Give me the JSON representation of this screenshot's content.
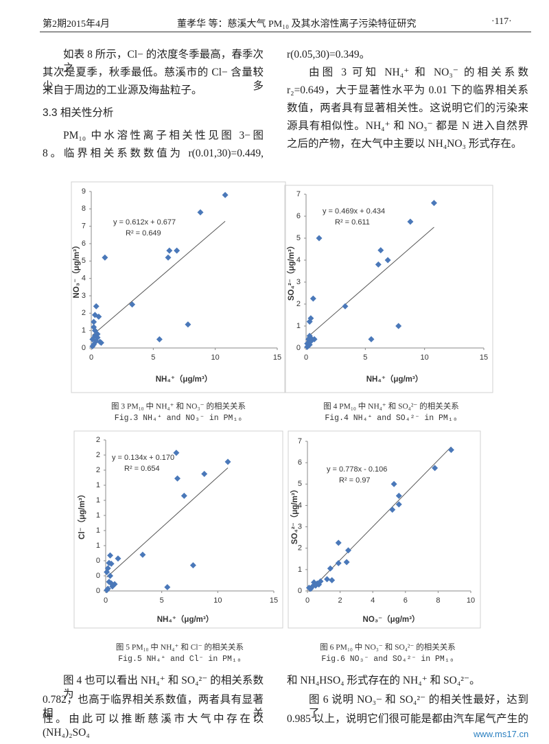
{
  "header": {
    "issue": "第2期2015年4月",
    "title": "董孝华 等：慈溪大气 PM₁₀ 及其水溶性离子污染特征研究",
    "page": "·117·"
  },
  "top_left": [
    "如表 8 所示，Cl− 的浓度冬季最高，春季次之，",
    "其次是夏季，秋季最低。慈溪市的 Cl− 含量较少，多",
    "来自于周边的工业源及海盐粒子。"
  ],
  "section": "3.3  相关性分析",
  "top_left_2": [
    "PM₁₀ 中水溶性离子相关性见图 3−图",
    "8。临界相关系数数值为 r(0.01,30)=0.449,"
  ],
  "top_right": [
    "r(0.05,30)=0.349。",
    "由图 3 可知 NH₄⁺ 和 NO₃⁻ 的相关系数",
    "r₂=0.649，大于显著性水平为 0.01 下的临界相关系",
    "数值，两者具有显著相关性。这说明它们的污染来",
    "源具有相似性。NH₄⁺ 和 NO₃⁻ 都是 N 进入自然界",
    "之后的产物，在大气中主要以 NH₄NO₃ 形式存在。"
  ],
  "chart_data": [
    {
      "type": "scatter",
      "color": "#4a78b9",
      "xlabel": "NH₄⁺（μg/m³）",
      "ylabel": "NO₃⁻（μg/m³）",
      "annotations": [
        "y = 0.612x + 0.677",
        "R² = 0.649"
      ],
      "caption_cn": "图 3  PM₁₀ 中 NH₄⁺ 和 NO₃⁻ 的相关关系",
      "caption_en": "Fig.3  NH₄⁺ and NO₃⁻ in PM₁₀",
      "xlim": [
        0,
        15
      ],
      "xticks": [
        0,
        5,
        10,
        15
      ],
      "ylim": [
        0,
        9
      ],
      "yticks": [
        0,
        1,
        2,
        3,
        4,
        5,
        6,
        7,
        8,
        9
      ],
      "x": [
        10.8,
        8.8,
        6.3,
        6.9,
        6.2,
        1.1,
        3.3,
        0.4,
        0.3,
        0.6,
        0.2,
        0.2,
        0.3,
        7.8,
        5.5,
        0.3,
        0.5,
        0.1,
        0.4,
        0.7,
        0.2,
        0.1,
        0.5,
        0.8
      ],
      "values": [
        8.8,
        7.8,
        5.6,
        5.6,
        5.2,
        5.2,
        2.5,
        2.4,
        1.9,
        1.8,
        1.5,
        1.2,
        1.0,
        1.35,
        0.5,
        0.7,
        0.6,
        0.5,
        0.4,
        0.35,
        0.2,
        0.1,
        0.8,
        0.3
      ]
    },
    {
      "type": "scatter",
      "color": "#4a78b9",
      "xlabel": "NH₄⁺（μg/m³）",
      "ylabel": "SO₄²⁻（μg/m³）",
      "annotations": [
        "y = 0.469x + 0.434",
        "R² = 0.611"
      ],
      "caption_cn": "图 4  PM₁₀ 中 NH₄⁺ 和 SO₄²⁻ 的相关关系",
      "caption_en": "Fig.4  NH₄⁺ and SO₄²⁻ in PM₁₀",
      "xlim": [
        0,
        15
      ],
      "xticks": [
        0,
        5,
        10,
        15
      ],
      "ylim": [
        0,
        7
      ],
      "yticks": [
        0,
        1,
        2,
        3,
        4,
        5,
        6,
        7
      ],
      "x": [
        10.8,
        8.8,
        1.1,
        6.3,
        6.9,
        6.1,
        0.6,
        3.3,
        0.4,
        0.3,
        7.8,
        5.5,
        0.3,
        0.2,
        0.5,
        0.7,
        0.1,
        0.3,
        0.4,
        0.2,
        0.1
      ],
      "values": [
        6.6,
        5.75,
        5.0,
        4.45,
        4.0,
        3.8,
        2.25,
        1.9,
        1.35,
        1.2,
        1.0,
        0.4,
        0.55,
        0.4,
        0.4,
        0.4,
        0.2,
        0.15,
        0.3,
        0.1,
        0.05
      ]
    },
    {
      "type": "scatter",
      "color": "#4a78b9",
      "xlabel": "NH₄⁺（μg/m³）",
      "ylabel": "Cl⁻（μg/m³）",
      "annotations": [
        "y = 0.134x + 0.170",
        "R² = 0.654"
      ],
      "caption_cn": "图 5  PM₁₀ 中 NH₄⁺ 和 Cl⁻ 的相关关系",
      "caption_en": "Fig.5  NH₄⁺ and Cl⁻ in PM₁₀",
      "xlim": [
        0,
        15
      ],
      "xticks": [
        0,
        5,
        10,
        15
      ],
      "ylim": [
        0,
        2
      ],
      "yticks": [
        0,
        {
          "value": 0.2,
          "label": "0"
        },
        {
          "value": 0.4,
          "label": "0"
        },
        {
          "value": 0.6,
          "label": "1"
        },
        {
          "value": 0.8,
          "label": "1"
        },
        1,
        {
          "value": 1.2,
          "label": "1"
        },
        {
          "value": 1.4,
          "label": "1"
        },
        {
          "value": 1.6,
          "label": "2"
        },
        {
          "value": 1.8,
          "label": "2"
        },
        2
      ],
      "x": [
        10.9,
        6.3,
        8.8,
        6.4,
        7.0,
        3.3,
        1.1,
        0.4,
        7.8,
        5.5,
        0.3,
        0.5,
        0.2,
        0.4,
        0.1,
        0.3,
        0.8,
        0.6,
        0.2,
        0.1,
        0.5
      ],
      "values": [
        1.71,
        1.83,
        1.55,
        1.49,
        1.26,
        0.48,
        0.43,
        0.47,
        0.34,
        0.05,
        0.37,
        0.36,
        0.3,
        0.2,
        0.25,
        0.12,
        0.09,
        0.06,
        0.03,
        0.01,
        0.1
      ]
    },
    {
      "type": "scatter",
      "color": "#4a78b9",
      "xlabel": "NO₃⁻（μg/m³）",
      "ylabel": "SO₄²⁻（μg/m³）",
      "annotations": [
        "y = 0.778x - 0.106",
        "R² = 0.97"
      ],
      "caption_cn": "图 6  PM₁₀ 中 NO₃⁻ 和 SO₄²⁻ 的相关关系",
      "caption_en": "Fig.6  NO₃⁻ and SO₄²⁻ in PM₁₀",
      "xlim": [
        0,
        10
      ],
      "xticks": [
        0,
        2,
        4,
        6,
        8,
        10
      ],
      "ylim": [
        0,
        7
      ],
      "yticks": [
        0,
        1,
        2,
        3,
        4,
        5,
        6,
        7
      ],
      "x": [
        8.8,
        7.8,
        5.3,
        5.6,
        5.6,
        5.2,
        1.9,
        2.5,
        1.9,
        1.4,
        2.4,
        1.2,
        1.5,
        0.8,
        0.4,
        0.6,
        0.3,
        0.5,
        0.2,
        0.1,
        0.7
      ],
      "values": [
        6.6,
        5.75,
        5.0,
        4.45,
        4.05,
        3.8,
        2.25,
        1.9,
        1.3,
        1.05,
        1.35,
        0.55,
        0.5,
        0.45,
        0.4,
        0.35,
        0.2,
        0.25,
        0.1,
        0.15,
        0.3
      ]
    }
  ],
  "bottom_left": [
    "图 4 也可以看出 NH₄⁺ 和 SO₄²⁻ 的相关系数为",
    "0.782，也高于临界相关系数值，两者具有显著相关",
    "性。由此可以推断慈溪市大气中存在以 (NH₄)₂SO₄"
  ],
  "bottom_right": [
    "和 NH₄HSO₄ 形式存在的 NH₄⁺ 和 SO₄²⁻。",
    "图 6 说明 NO₃− 和 SO₄²⁻ 的相关性最好，达到了",
    "0.985 以上，说明它们很可能是都由汽车尾气产生的"
  ],
  "watermark": "www.ms17.cn"
}
